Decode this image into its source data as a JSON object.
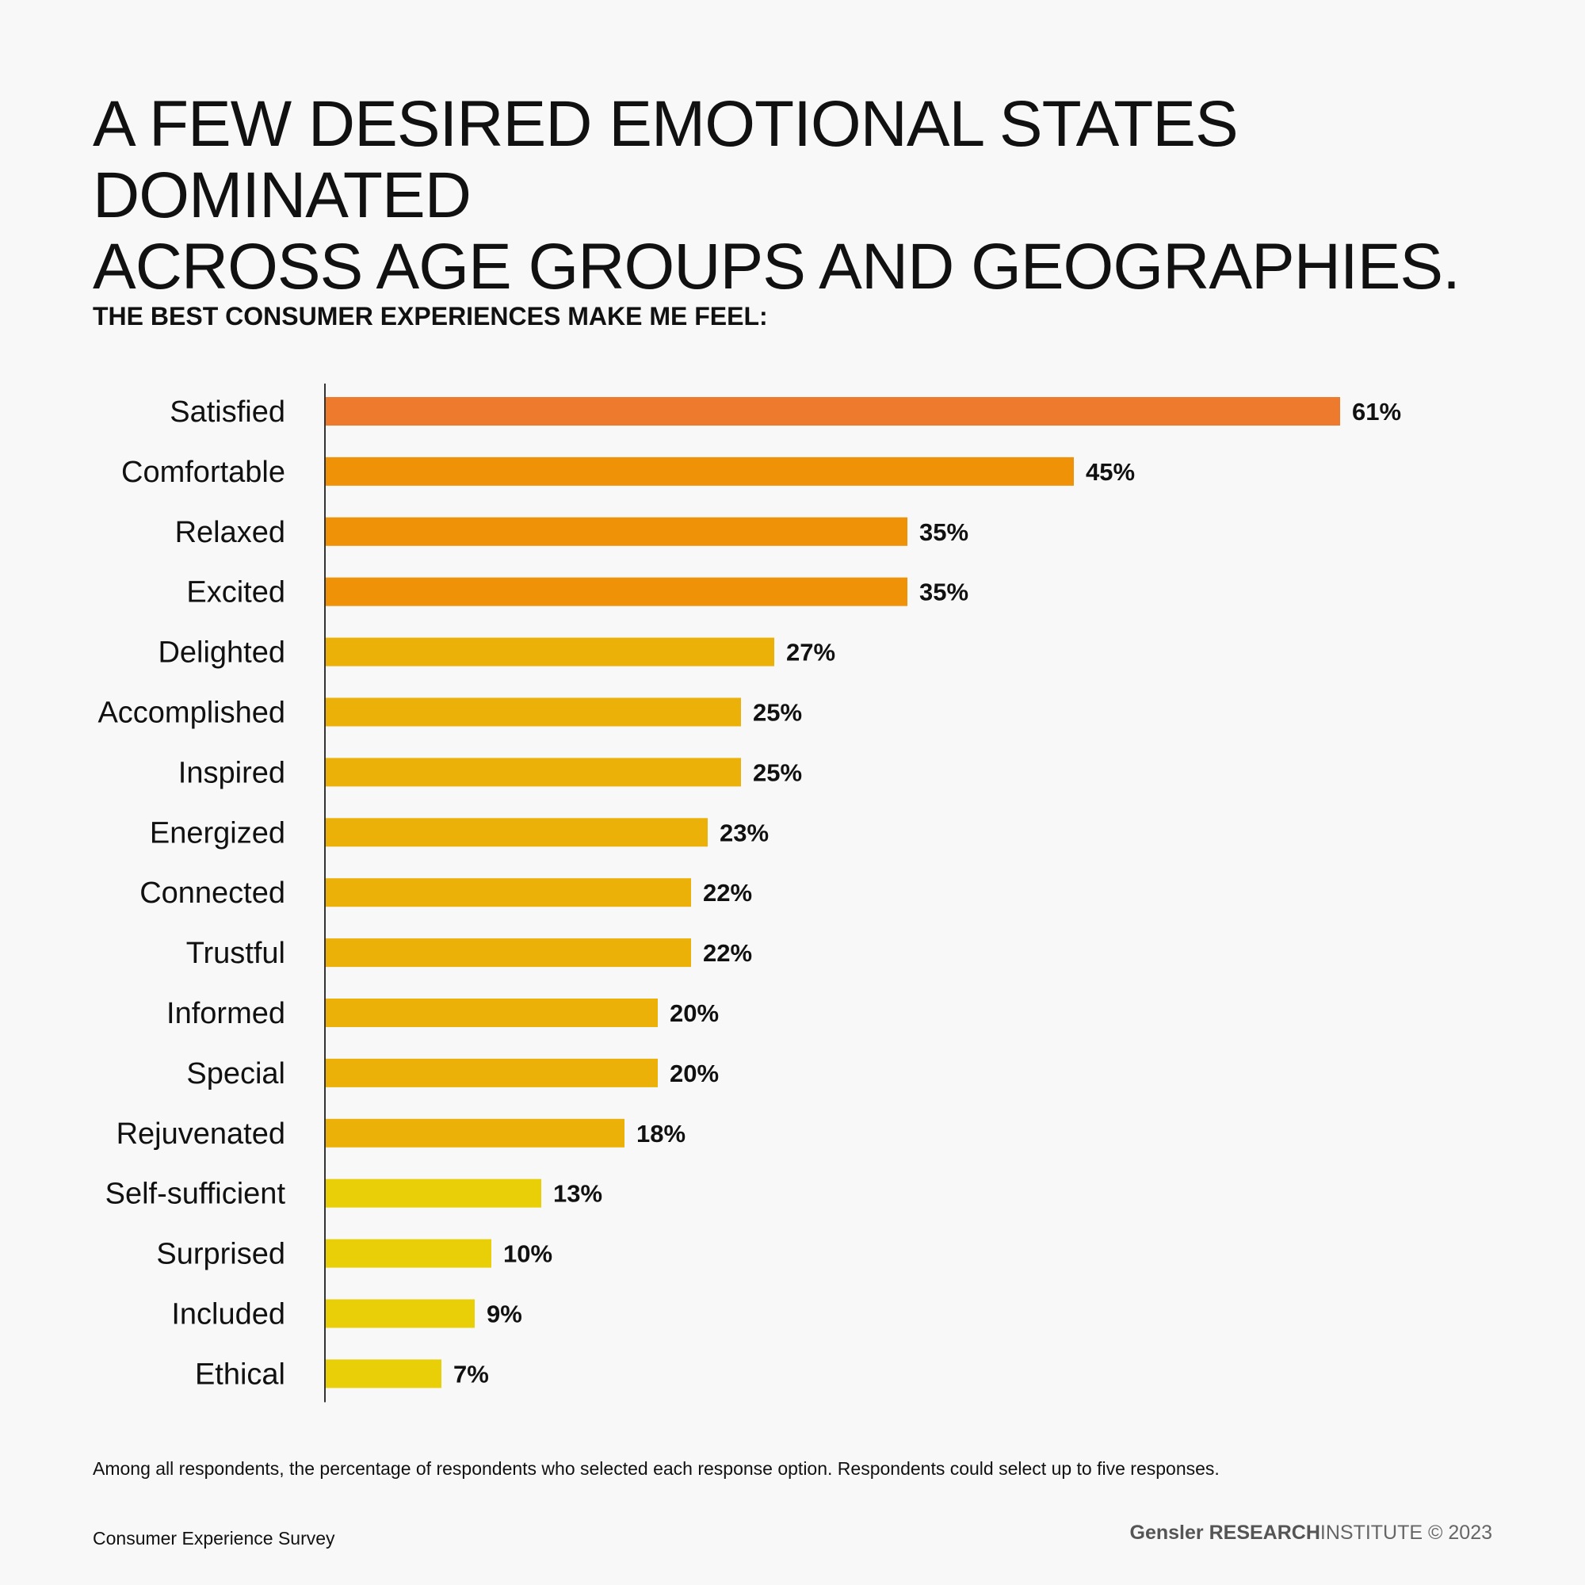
{
  "header": {
    "title_line1": "A FEW DESIRED EMOTIONAL STATES DOMINATED",
    "title_line2": "ACROSS AGE GROUPS AND GEOGRAPHIES."
  },
  "chart_data": {
    "type": "bar",
    "orientation": "horizontal",
    "title": "THE BEST CONSUMER EXPERIENCES MAKE ME FEEL:",
    "categories": [
      "Satisfied",
      "Comfortable",
      "Relaxed",
      "Excited",
      "Delighted",
      "Accomplished",
      "Inspired",
      "Energized",
      "Connected",
      "Trustful",
      "Informed",
      "Special",
      "Rejuvenated",
      "Self-sufficient",
      "Surprised",
      "Included",
      "Ethical"
    ],
    "values": [
      61,
      45,
      35,
      35,
      27,
      25,
      25,
      23,
      22,
      22,
      20,
      20,
      18,
      13,
      10,
      9,
      7
    ],
    "value_labels": [
      "61%",
      "45%",
      "35%",
      "35%",
      "27%",
      "25%",
      "25%",
      "23%",
      "22%",
      "22%",
      "20%",
      "20%",
      "18%",
      "13%",
      "10%",
      "9%",
      "7%"
    ],
    "bar_colors": [
      "#ee7a2e",
      "#f09208",
      "#f09208",
      "#f09208",
      "#ebb108",
      "#ebb108",
      "#ebb108",
      "#ebb108",
      "#ebb108",
      "#ebb108",
      "#ebb108",
      "#ebb108",
      "#ebb108",
      "#e8cf08",
      "#e8cf08",
      "#e8cf08",
      "#e8cf08"
    ],
    "axis_color": "#333333",
    "xlim": [
      0,
      70
    ],
    "xlabel": "",
    "ylabel": "",
    "grid": false
  },
  "footer": {
    "note": "Among all respondents, the percentage of respondents who selected each response option. Respondents could select up to five responses.",
    "source": "Consumer Experience Survey",
    "brand_name": "Gensler",
    "brand_research": "RESEARCH",
    "brand_institute": "INSTITUTE",
    "brand_year": "© 2023"
  }
}
